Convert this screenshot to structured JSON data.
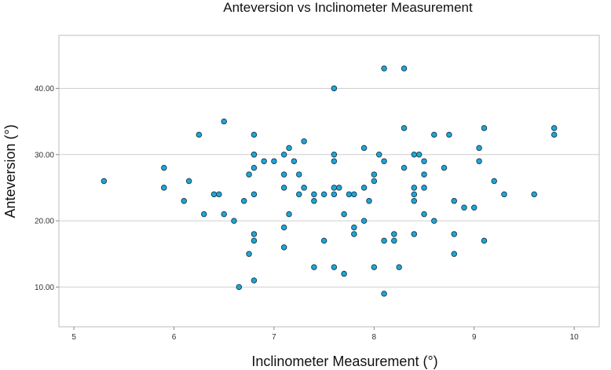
{
  "chart_data": {
    "type": "scatter",
    "title": "Anteversion vs Inclinometer Measurement",
    "xlabel": "Inclinometer Measurement (°)",
    "ylabel": "Anteversion (°)",
    "xlim": [
      4.85,
      10.25
    ],
    "ylim": [
      4,
      48
    ],
    "xticks": [
      5,
      6,
      7,
      8,
      9,
      10
    ],
    "xtick_labels": [
      "5",
      "6",
      "7",
      "8",
      "9",
      "10"
    ],
    "yticks": [
      10,
      20,
      30,
      40
    ],
    "ytick_labels": [
      "10.00",
      "20.00",
      "30.00",
      "40.00"
    ],
    "grid": "horizontal",
    "point_color": "#1ea6d8",
    "point_edge_color": "#1b3a4b",
    "points": [
      [
        5.3,
        26
      ],
      [
        5.9,
        28
      ],
      [
        5.9,
        25
      ],
      [
        6.1,
        23
      ],
      [
        6.15,
        26
      ],
      [
        6.25,
        33
      ],
      [
        6.3,
        21
      ],
      [
        6.4,
        24
      ],
      [
        6.45,
        24
      ],
      [
        6.5,
        35
      ],
      [
        6.5,
        21
      ],
      [
        6.6,
        20
      ],
      [
        6.65,
        10
      ],
      [
        6.7,
        23
      ],
      [
        6.75,
        27
      ],
      [
        6.75,
        15
      ],
      [
        6.8,
        33
      ],
      [
        6.8,
        30
      ],
      [
        6.8,
        30
      ],
      [
        6.8,
        28
      ],
      [
        6.8,
        24
      ],
      [
        6.8,
        18
      ],
      [
        6.8,
        17
      ],
      [
        6.8,
        11
      ],
      [
        6.9,
        29
      ],
      [
        7.0,
        29
      ],
      [
        7.1,
        30
      ],
      [
        7.1,
        27
      ],
      [
        7.1,
        25
      ],
      [
        7.1,
        19
      ],
      [
        7.1,
        16
      ],
      [
        7.15,
        31
      ],
      [
        7.15,
        21
      ],
      [
        7.2,
        29
      ],
      [
        7.25,
        27
      ],
      [
        7.25,
        24
      ],
      [
        7.3,
        32
      ],
      [
        7.3,
        25
      ],
      [
        7.4,
        24
      ],
      [
        7.4,
        23
      ],
      [
        7.4,
        13
      ],
      [
        7.5,
        24
      ],
      [
        7.5,
        17
      ],
      [
        7.6,
        40
      ],
      [
        7.6,
        30
      ],
      [
        7.6,
        29
      ],
      [
        7.6,
        25
      ],
      [
        7.6,
        24
      ],
      [
        7.6,
        13
      ],
      [
        7.65,
        25
      ],
      [
        7.7,
        21
      ],
      [
        7.7,
        12
      ],
      [
        7.75,
        24
      ],
      [
        7.8,
        24
      ],
      [
        7.8,
        19
      ],
      [
        7.8,
        18
      ],
      [
        7.9,
        31
      ],
      [
        7.9,
        25
      ],
      [
        7.9,
        20
      ],
      [
        7.95,
        23
      ],
      [
        8.0,
        27
      ],
      [
        8.0,
        26
      ],
      [
        8.0,
        13
      ],
      [
        8.05,
        30
      ],
      [
        8.1,
        43
      ],
      [
        8.1,
        29
      ],
      [
        8.1,
        17
      ],
      [
        8.1,
        9
      ],
      [
        8.2,
        18
      ],
      [
        8.2,
        17
      ],
      [
        8.25,
        13
      ],
      [
        8.3,
        43
      ],
      [
        8.3,
        34
      ],
      [
        8.3,
        28
      ],
      [
        8.4,
        30
      ],
      [
        8.4,
        25
      ],
      [
        8.4,
        24
      ],
      [
        8.4,
        23
      ],
      [
        8.4,
        18
      ],
      [
        8.45,
        30
      ],
      [
        8.5,
        29
      ],
      [
        8.5,
        27
      ],
      [
        8.5,
        25
      ],
      [
        8.5,
        21
      ],
      [
        8.6,
        33
      ],
      [
        8.6,
        20
      ],
      [
        8.7,
        28
      ],
      [
        8.75,
        33
      ],
      [
        8.8,
        23
      ],
      [
        8.8,
        18
      ],
      [
        8.8,
        15
      ],
      [
        8.9,
        22
      ],
      [
        9.0,
        22
      ],
      [
        9.05,
        31
      ],
      [
        9.05,
        29
      ],
      [
        9.1,
        34
      ],
      [
        9.1,
        17
      ],
      [
        9.2,
        26
      ],
      [
        9.3,
        24
      ],
      [
        9.6,
        24
      ],
      [
        9.8,
        34
      ],
      [
        9.8,
        33
      ]
    ]
  }
}
